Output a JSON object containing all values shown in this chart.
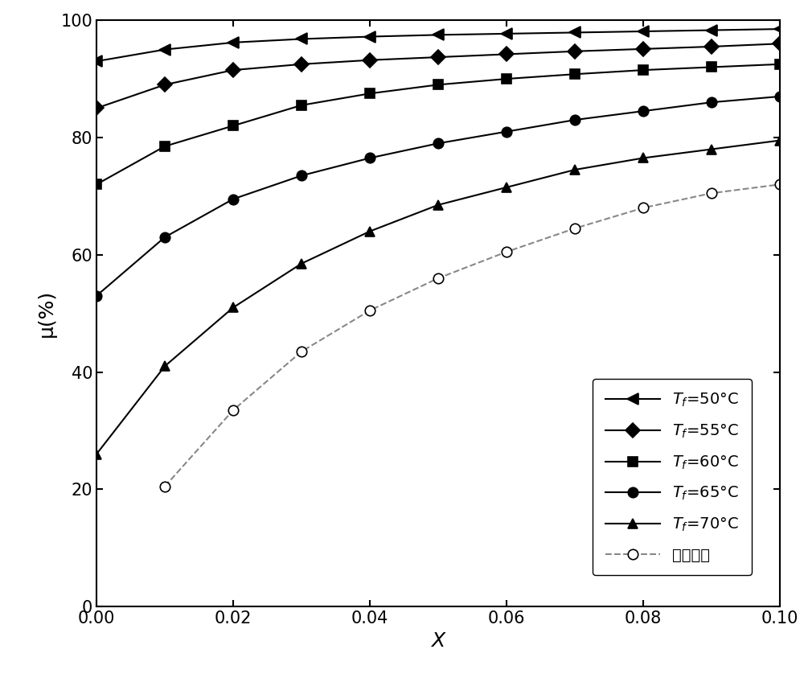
{
  "x": [
    0.0,
    0.01,
    0.02,
    0.03,
    0.04,
    0.05,
    0.06,
    0.07,
    0.08,
    0.09,
    0.1
  ],
  "series": [
    {
      "label_tex": "$T_f$=50°C",
      "label_chinese": null,
      "y": [
        93.0,
        95.0,
        96.2,
        96.8,
        97.2,
        97.5,
        97.7,
        97.9,
        98.1,
        98.3,
        98.5
      ],
      "marker": "<",
      "linestyle": "-",
      "color": "#000000",
      "markersize": 10,
      "markerfacecolor": "#000000"
    },
    {
      "label_tex": "$T_f$=55°C",
      "label_chinese": null,
      "y": [
        85.0,
        89.0,
        91.5,
        92.5,
        93.2,
        93.7,
        94.2,
        94.7,
        95.1,
        95.5,
        96.0
      ],
      "marker": "D",
      "linestyle": "-",
      "color": "#000000",
      "markersize": 9,
      "markerfacecolor": "#000000"
    },
    {
      "label_tex": "$T_f$=60°C",
      "label_chinese": null,
      "y": [
        72.0,
        78.5,
        82.0,
        85.5,
        87.5,
        89.0,
        90.0,
        90.8,
        91.5,
        92.0,
        92.5
      ],
      "marker": "s",
      "linestyle": "-",
      "color": "#000000",
      "markersize": 9,
      "markerfacecolor": "#000000"
    },
    {
      "label_tex": "$T_f$=65°C",
      "label_chinese": null,
      "y": [
        53.0,
        63.0,
        69.5,
        73.5,
        76.5,
        79.0,
        81.0,
        83.0,
        84.5,
        86.0,
        87.0
      ],
      "marker": "o",
      "linestyle": "-",
      "color": "#000000",
      "markersize": 9,
      "markerfacecolor": "#000000"
    },
    {
      "label_tex": "$T_f$=70°C",
      "label_chinese": null,
      "y": [
        26.0,
        41.0,
        51.0,
        58.5,
        64.0,
        68.5,
        71.5,
        74.5,
        76.5,
        78.0,
        79.5
      ],
      "marker": "^",
      "linestyle": "-",
      "color": "#000000",
      "markersize": 9,
      "markerfacecolor": "#000000"
    },
    {
      "label_tex": null,
      "label_chinese": "水回收线",
      "y": [
        null,
        20.5,
        33.5,
        43.5,
        50.5,
        56.0,
        60.5,
        64.5,
        68.0,
        70.5,
        72.0
      ],
      "marker": "o",
      "linestyle": "--",
      "color": "#888888",
      "markersize": 9,
      "markerfacecolor": "white"
    }
  ],
  "xlabel": "$X$",
  "ylabel": "μ(%)",
  "xlim": [
    0.0,
    0.1
  ],
  "ylim": [
    0,
    100
  ],
  "xticks": [
    0.0,
    0.02,
    0.04,
    0.06,
    0.08,
    0.1
  ],
  "yticks": [
    0,
    20,
    40,
    60,
    80,
    100
  ],
  "label_fontsize": 18,
  "tick_fontsize": 15,
  "legend_fontsize": 14
}
